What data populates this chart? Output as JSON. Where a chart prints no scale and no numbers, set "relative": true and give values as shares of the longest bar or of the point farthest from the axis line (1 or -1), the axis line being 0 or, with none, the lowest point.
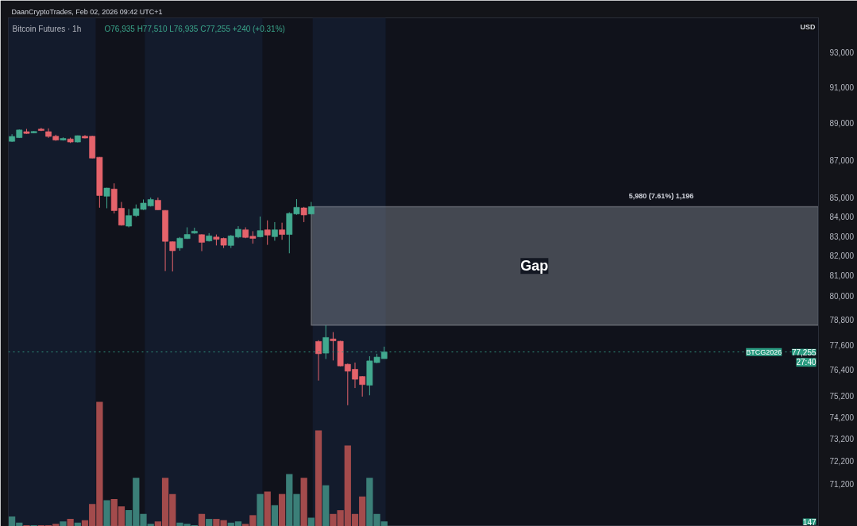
{
  "chart_data": [
    {
      "type": "candlestick",
      "title": "Bitcoin Futures · 1h",
      "subtitle": "O76,935 H77,510 L76,935 C77,255 +240 (+0.31%)",
      "ylabel": "USD",
      "categories": [
        null,
        null,
        null,
        null,
        null,
        null,
        null,
        null,
        null,
        null,
        null,
        null,
        null,
        null,
        null,
        null,
        null,
        null,
        null,
        null,
        null,
        null,
        null,
        null,
        null,
        null,
        null,
        null,
        null,
        null,
        null,
        null,
        null,
        null,
        null,
        null,
        null,
        null,
        null,
        null,
        null,
        null,
        null,
        null,
        null,
        null,
        null,
        null,
        null,
        null,
        null,
        null,
        null,
        null,
        null,
        null,
        null,
        null,
        null,
        null,
        null,
        null,
        null,
        null,
        null,
        null,
        null,
        null,
        null,
        null,
        null,
        null,
        null,
        null,
        null,
        null,
        null,
        null,
        null,
        null,
        null,
        null,
        null,
        null,
        null,
        null,
        null,
        null,
        null,
        null,
        null,
        null,
        null,
        null,
        null,
        null,
        null,
        null,
        null,
        null,
        null,
        null,
        null,
        null,
        null,
        null,
        null,
        null,
        null,
        null,
        null
      ],
      "ohlc": [
        [
          88010,
          88400,
          87980,
          88280
        ],
        [
          88210,
          88660,
          88200,
          88630
        ],
        [
          88540,
          88690,
          88420,
          88440
        ],
        [
          88470,
          88570,
          88450,
          88550
        ],
        [
          88680,
          88750,
          88570,
          88600
        ],
        [
          88540,
          88720,
          88200,
          88280
        ],
        [
          88290,
          88370,
          88040,
          88080
        ],
        [
          88080,
          88230,
          88050,
          88170
        ],
        [
          88140,
          88210,
          87920,
          87970
        ],
        [
          87970,
          88330,
          87950,
          88320
        ],
        [
          88290,
          88350,
          88170,
          88190
        ],
        [
          88290,
          88320,
          87090,
          87100
        ],
        [
          87150,
          87160,
          84470,
          85110
        ],
        [
          85070,
          85520,
          84440,
          85500
        ],
        [
          85450,
          85750,
          84170,
          84320
        ],
        [
          84440,
          84770,
          83540,
          83560
        ],
        [
          83510,
          84400,
          83450,
          84060
        ],
        [
          84060,
          84640,
          83990,
          84420
        ],
        [
          84380,
          84900,
          84350,
          84710
        ],
        [
          84560,
          85000,
          84530,
          84900
        ],
        [
          84860,
          85000,
          84350,
          84360
        ],
        [
          84330,
          84340,
          81220,
          82730
        ],
        [
          82710,
          82720,
          81200,
          82250
        ],
        [
          82390,
          82950,
          82250,
          82890
        ],
        [
          82870,
          83450,
          82850,
          83080
        ],
        [
          83150,
          83430,
          83120,
          83250
        ],
        [
          83070,
          83090,
          82230,
          82680
        ],
        [
          82750,
          83150,
          82720,
          83010
        ],
        [
          82950,
          83080,
          82520,
          82830
        ],
        [
          82880,
          82920,
          82390,
          82530
        ],
        [
          82520,
          83050,
          82390,
          83010
        ],
        [
          82950,
          83510,
          82890,
          83350
        ],
        [
          83320,
          83450,
          82890,
          82930
        ],
        [
          82990,
          83250,
          82610,
          82880
        ],
        [
          82960,
          84010,
          82930,
          83280
        ],
        [
          83320,
          83810,
          82550,
          83050
        ],
        [
          82970,
          83720,
          82760,
          83320
        ],
        [
          83320,
          83690,
          82810,
          83080
        ],
        [
          83080,
          84230,
          82120,
          84170
        ],
        [
          84140,
          84920,
          84100,
          84490
        ],
        [
          84460,
          84510,
          83720,
          84090
        ],
        [
          84140,
          84770,
          84120,
          84520
        ],
        [
          77760,
          77820,
          75900,
          77170
        ],
        [
          77200,
          78540,
          76920,
          77950
        ],
        [
          77880,
          78210,
          76850,
          77790
        ],
        [
          77770,
          77790,
          76570,
          76590
        ],
        [
          76670,
          76700,
          74750,
          76340
        ],
        [
          76430,
          76750,
          75550,
          75960
        ],
        [
          76090,
          76110,
          75150,
          75710
        ],
        [
          75680,
          77050,
          75210,
          76830
        ],
        [
          76750,
          77170,
          76720,
          77010
        ],
        [
          76935,
          77510,
          76935,
          77255
        ],
        null,
        null,
        null,
        null,
        null,
        null,
        null,
        null,
        null,
        null,
        null,
        null,
        null,
        null,
        null,
        null,
        null,
        null,
        null,
        null,
        null,
        null,
        null,
        null,
        null,
        null,
        null,
        null,
        null,
        null,
        null,
        null,
        null,
        null,
        null,
        null,
        null,
        null,
        null,
        null,
        null,
        null,
        null,
        null,
        null,
        null,
        null,
        null,
        null,
        null,
        null,
        null,
        null,
        null,
        null,
        null,
        null,
        null,
        null
      ],
      "colors": [
        "#42a98f",
        "#42a98f",
        "#e5636b",
        "#42a98f",
        "#e5636b",
        "#e5636b",
        "#e5636b",
        "#42a98f",
        "#e5636b",
        "#42a98f",
        "#e5636b",
        "#e5636b",
        "#e5636b",
        "#42a98f",
        "#e5636b",
        "#e5636b",
        "#42a98f",
        "#42a98f",
        "#42a98f",
        "#42a98f",
        "#e5636b",
        "#e5636b",
        "#e5636b",
        "#42a98f",
        "#42a98f",
        "#42a98f",
        "#e5636b",
        "#42a98f",
        "#e5636b",
        "#e5636b",
        "#42a98f",
        "#42a98f",
        "#e5636b",
        "#e5636b",
        "#42a98f",
        "#e5636b",
        "#42a98f",
        "#e5636b",
        "#42a98f",
        "#42a98f",
        "#e5636b",
        "#42a98f",
        "#e5636b",
        "#42a98f",
        "#e5636b",
        "#e5636b",
        "#e5636b",
        "#e5636b",
        "#e5636b",
        "#42a98f",
        "#42a98f",
        "#42a98f",
        null,
        null,
        null,
        null,
        null,
        null,
        null,
        null,
        null,
        null,
        null,
        null,
        null,
        null,
        null,
        null,
        null,
        null,
        null,
        null,
        null,
        null,
        null,
        null,
        null,
        null,
        null,
        null,
        null,
        null,
        null,
        null,
        null,
        null,
        null,
        null,
        null,
        null,
        null,
        null,
        null,
        null,
        null,
        null,
        null,
        null,
        null,
        null,
        null,
        null,
        null,
        null,
        null,
        null,
        null,
        null,
        null,
        null,
        null
      ],
      "log": true,
      "ylim": [
        69350,
        95000
      ],
      "yticks": [
        {
          "value": 71200,
          "label": "71,200"
        },
        {
          "value": 72200,
          "label": "72,200"
        },
        {
          "value": 73200,
          "label": "73,200"
        },
        {
          "value": 74200,
          "label": "74,200"
        },
        {
          "value": 75200,
          "label": "75,200"
        },
        {
          "value": 76400,
          "label": "76,400"
        },
        {
          "value": 77600,
          "label": "77,600"
        },
        {
          "value": 78800,
          "label": "78,800"
        },
        {
          "value": 80000,
          "label": "80,000"
        },
        {
          "value": 81000,
          "label": "81,000"
        },
        {
          "value": 82000,
          "label": "82,000"
        },
        {
          "value": 83000,
          "label": "83,000"
        },
        {
          "value": 84000,
          "label": "84,000"
        },
        {
          "value": 85000,
          "label": "85,000"
        },
        {
          "value": 87000,
          "label": "87,000"
        },
        {
          "value": 89000,
          "label": "89,000"
        },
        {
          "value": 91000,
          "label": "91,000"
        },
        {
          "value": 93000,
          "label": "93,000"
        }
      ],
      "ref_lines": [
        {
          "axis": "y",
          "value": 77255,
          "label": "BTCG2026",
          "color": "#2f8f7d",
          "line_style": "dotted"
        }
      ],
      "bands": [
        {
          "axis": "y",
          "from": 78540,
          "to": 84520,
          "label": "Gap",
          "color": "#787d88"
        }
      ],
      "annotations": [
        "DaanCryptoTrades, Feb 02, 2026 09:42 UTC+1",
        {
          "text": "5,980 (7.61%) 1,196",
          "y": 84520
        },
        {
          "text": "77,255",
          "y": 77255
        },
        "27:40"
      ]
    },
    {
      "type": "bar",
      "relative": true,
      "categories": [
        null,
        null,
        null,
        null,
        null,
        null,
        null,
        null,
        null,
        null,
        null,
        null,
        null,
        null,
        null,
        null,
        null,
        null,
        null,
        null,
        null,
        null,
        null,
        null,
        null,
        null,
        null,
        null,
        null,
        null,
        null,
        null,
        null,
        null,
        null,
        null,
        null,
        null,
        null,
        null,
        null,
        null,
        null,
        null,
        null,
        null,
        null,
        null,
        null,
        null,
        null,
        null,
        null,
        null,
        null,
        null,
        null,
        null,
        null,
        null,
        null,
        null,
        null,
        null,
        null,
        null,
        null,
        null,
        null,
        null,
        null,
        null,
        null,
        null,
        null,
        null,
        null,
        null,
        null,
        null,
        null,
        null,
        null,
        null,
        null,
        null,
        null,
        null,
        null,
        null,
        null,
        null,
        null,
        null,
        null,
        null,
        null,
        null,
        null,
        null,
        null,
        null,
        null,
        null,
        null,
        null,
        null,
        null,
        null,
        null,
        null
      ],
      "values": [
        0.08,
        0.03,
        0.01,
        0.01,
        0.01,
        0.01,
        0.02,
        0.04,
        0.06,
        0.03,
        0.05,
        0.18,
        1,
        0.21,
        0.22,
        0.16,
        0.13,
        0.39,
        0.1,
        0.02,
        0.04,
        0.39,
        0.26,
        0.03,
        0.02,
        0.01,
        0.1,
        0.06,
        0.06,
        0.05,
        0.03,
        0.04,
        0.02,
        0.09,
        0.26,
        0.28,
        0.17,
        0.26,
        0.42,
        0.26,
        0.39,
        0.07,
        0.77,
        0.33,
        0.1,
        0.13,
        0.65,
        0.1,
        0.24,
        0.39,
        0.1,
        0.04,
        null,
        null,
        null,
        null,
        null,
        null,
        null,
        null,
        null,
        null,
        null,
        null,
        null,
        null,
        null,
        null,
        null,
        null,
        null,
        null,
        null,
        null,
        null,
        null,
        null,
        null,
        null,
        null,
        null,
        null,
        null,
        null,
        null,
        null,
        null,
        null,
        null,
        null,
        null,
        null,
        null,
        null,
        null,
        null,
        null,
        null,
        null,
        null,
        null,
        null,
        null,
        null,
        null,
        null,
        null,
        null,
        null,
        null,
        null
      ],
      "colors": [
        "#3b7f78",
        "#3b7f78",
        "#a34b4c",
        "#3b7f78",
        "#a34b4c",
        "#a34b4c",
        "#a34b4c",
        "#3b7f78",
        "#a34b4c",
        "#3b7f78",
        "#a34b4c",
        "#a34b4c",
        "#a34b4c",
        "#3b7f78",
        "#a34b4c",
        "#a34b4c",
        "#3b7f78",
        "#3b7f78",
        "#3b7f78",
        "#3b7f78",
        "#a34b4c",
        "#a34b4c",
        "#a34b4c",
        "#3b7f78",
        "#3b7f78",
        "#3b7f78",
        "#a34b4c",
        "#3b7f78",
        "#a34b4c",
        "#a34b4c",
        "#3b7f78",
        "#3b7f78",
        "#a34b4c",
        "#a34b4c",
        "#3b7f78",
        "#a34b4c",
        "#3b7f78",
        "#a34b4c",
        "#3b7f78",
        "#3b7f78",
        "#a34b4c",
        "#3b7f78",
        "#a34b4c",
        "#3b7f78",
        "#a34b4c",
        "#a34b4c",
        "#a34b4c",
        "#a34b4c",
        "#a34b4c",
        "#3b7f78",
        "#3b7f78",
        "#3b7f78",
        null,
        null,
        null,
        null,
        null,
        null,
        null,
        null,
        null,
        null,
        null,
        null,
        null,
        null,
        null,
        null,
        null,
        null,
        null,
        null,
        null,
        null,
        null,
        null,
        null,
        null,
        null,
        null,
        null,
        null,
        null,
        null,
        null,
        null,
        null,
        null,
        null,
        null,
        null,
        null,
        null,
        null,
        null,
        null,
        null,
        null,
        null,
        null,
        null,
        null,
        null,
        null,
        null,
        null,
        null,
        null,
        null,
        null,
        null
      ],
      "annotations": [
        "147"
      ]
    }
  ]
}
